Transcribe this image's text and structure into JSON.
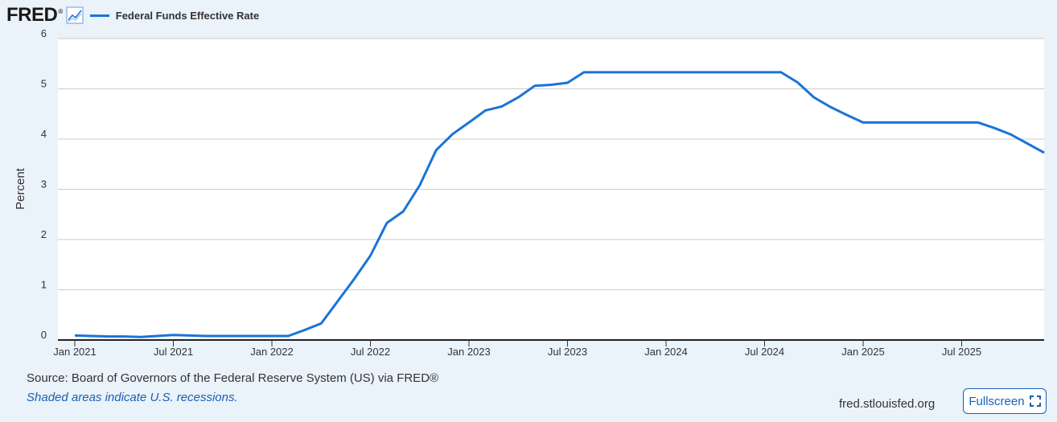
{
  "header": {
    "logo": "FRED",
    "logo_mark": "®",
    "legend_label": "Federal Funds Effective Rate"
  },
  "colors": {
    "series": "#1a73d9",
    "accent": "#1a5fb4"
  },
  "icons": {
    "trend": "line-chart-icon",
    "fullscreen": "expand-icon"
  },
  "footer": {
    "source": "Source: Board of Governors of the Federal Reserve System (US) via FRED®",
    "note": "Shaded areas indicate U.S. recessions.",
    "site": "fred.stlouisfed.org",
    "fullscreen_label": "Fullscreen"
  },
  "chart_data": {
    "type": "line",
    "xlabel": "",
    "ylabel": "Percent",
    "ylim": [
      0,
      6
    ],
    "yticks": [
      0,
      1,
      2,
      3,
      4,
      5,
      6
    ],
    "xlim": [
      "2021-01",
      "2025-10"
    ],
    "xticks": [
      {
        "label": "Jan 2021",
        "date": "2021-01"
      },
      {
        "label": "Jul 2021",
        "date": "2021-07"
      },
      {
        "label": "Jan 2022",
        "date": "2022-01"
      },
      {
        "label": "Jul 2022",
        "date": "2022-07"
      },
      {
        "label": "Jan 2023",
        "date": "2023-01"
      },
      {
        "label": "Jul 2023",
        "date": "2023-07"
      },
      {
        "label": "Jan 2024",
        "date": "2024-01"
      },
      {
        "label": "Jul 2024",
        "date": "2024-07"
      },
      {
        "label": "Jan 2025",
        "date": "2025-01"
      },
      {
        "label": "Jul 2025",
        "date": "2025-07"
      }
    ],
    "grid": true,
    "legend": "top-left",
    "series": [
      {
        "name": "Federal Funds Effective Rate",
        "x": [
          "2021-01",
          "2021-02",
          "2021-03",
          "2021-04",
          "2021-05",
          "2021-06",
          "2021-07",
          "2021-08",
          "2021-09",
          "2021-10",
          "2021-11",
          "2021-12",
          "2022-01",
          "2022-02",
          "2022-03",
          "2022-04",
          "2022-05",
          "2022-06",
          "2022-07",
          "2022-08",
          "2022-09",
          "2022-10",
          "2022-11",
          "2022-12",
          "2023-01",
          "2023-02",
          "2023-03",
          "2023-04",
          "2023-05",
          "2023-06",
          "2023-07",
          "2023-08",
          "2023-09",
          "2023-10",
          "2023-11",
          "2023-12",
          "2024-01",
          "2024-02",
          "2024-03",
          "2024-04",
          "2024-05",
          "2024-06",
          "2024-07",
          "2024-08",
          "2024-09",
          "2024-10",
          "2024-11",
          "2024-12",
          "2025-01",
          "2025-02",
          "2025-03",
          "2025-04",
          "2025-05",
          "2025-06",
          "2025-07",
          "2025-08",
          "2025-09",
          "2025-10"
        ],
        "y": [
          0.09,
          0.08,
          0.07,
          0.07,
          0.06,
          0.08,
          0.1,
          0.09,
          0.08,
          0.08,
          0.08,
          0.08,
          0.08,
          0.08,
          0.2,
          0.33,
          0.77,
          1.21,
          1.68,
          2.33,
          2.56,
          3.08,
          3.78,
          4.1,
          4.33,
          4.57,
          4.65,
          4.83,
          5.06,
          5.08,
          5.12,
          5.33,
          5.33,
          5.33,
          5.33,
          5.33,
          5.33,
          5.33,
          5.33,
          5.33,
          5.33,
          5.33,
          5.33,
          5.33,
          5.13,
          4.83,
          4.64,
          4.48,
          4.33,
          4.33,
          4.33,
          4.33,
          4.33,
          4.33,
          4.33,
          4.33,
          4.22,
          4.09
        ]
      }
    ],
    "end_point": {
      "date": "2025-11",
      "y": 3.73
    }
  }
}
